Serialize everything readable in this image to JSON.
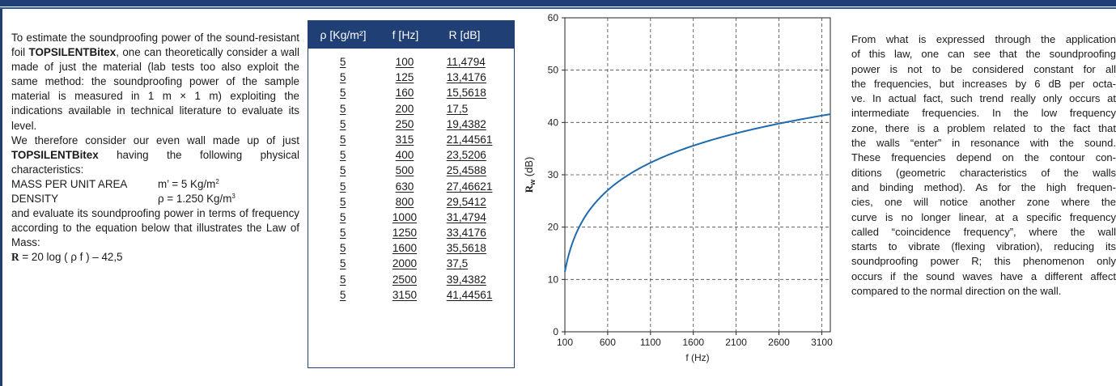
{
  "intro": {
    "p1_a": "To estimate the soundproofing power of the sound-resistant foil ",
    "p1_brand": "TOPSILENTBitex",
    "p1_b": ", one can theoretically consider a wall made of just the material (lab tests too also exploit the same method: the soundproofing power of the sample material is measured in 1 m × 1 m) exploiting the indications available in technical literature to evaluate its level.",
    "p2_a": "We therefore consider our even wall made up of just ",
    "p2_brand": "TOPSILENTBitex",
    "p2_b": " having the following physical characteristics:",
    "mass_label": "MASS PER UNIT AREA",
    "mass_value": "m’ = 5 Kg/m",
    "mass_exp": "2",
    "density_label": "DENSITY",
    "density_value": "ρ = 1.250 Kg/m",
    "density_exp": "3",
    "p3": "and evaluate its soundproofing power in terms of frequency according to the equation below that illustrates the Law of Mass:",
    "eq_symbol": "R",
    "eq_rest": " = 20 log ( ρ f ) – 42,5"
  },
  "table": {
    "headers": [
      "ρ [Kg/m²]",
      "f [Hz]",
      "R [dB]"
    ],
    "rows": [
      [
        "5",
        "100",
        "11,4794"
      ],
      [
        "5",
        "125",
        "13,4176"
      ],
      [
        "5",
        "160",
        "15,5618"
      ],
      [
        "5",
        "200",
        "17,5"
      ],
      [
        "5",
        "250",
        "19,4382"
      ],
      [
        "5",
        "315",
        "21,44561"
      ],
      [
        "5",
        "400",
        "23,5206"
      ],
      [
        "5",
        "500",
        "25,4588"
      ],
      [
        "5",
        "630",
        "27,46621"
      ],
      [
        "5",
        "800",
        "29,5412"
      ],
      [
        "5",
        "1000",
        "31,4794"
      ],
      [
        "5",
        "1250",
        "33,4176"
      ],
      [
        "5",
        "1600",
        "35,5618"
      ],
      [
        "5",
        "2000",
        "37,5"
      ],
      [
        "5",
        "2500",
        "39,4382"
      ],
      [
        "5",
        "3150",
        "41,44561"
      ]
    ]
  },
  "chart_data": {
    "type": "line",
    "xlabel": "f (Hz)",
    "ylabel_main": "R",
    "ylabel_sub": "w",
    "ylabel_unit": " (dB)",
    "xlim": [
      100,
      3200
    ],
    "ylim": [
      0,
      60
    ],
    "xticks": [
      100,
      600,
      1100,
      1600,
      2100,
      2600,
      3100
    ],
    "yticks": [
      0,
      10,
      20,
      30,
      40,
      50,
      60
    ],
    "grid": "dashed",
    "series": [
      {
        "color": "#1f6bb0",
        "x": [
          100,
          125,
          160,
          200,
          250,
          315,
          400,
          500,
          630,
          800,
          1000,
          1250,
          1600,
          2000,
          2500,
          3150,
          3200
        ],
        "y": [
          11.4794,
          13.4176,
          15.5618,
          17.5,
          19.4382,
          21.44561,
          23.5206,
          25.4588,
          27.46621,
          29.5412,
          31.4794,
          33.4176,
          35.5618,
          37.5,
          39.4382,
          41.44561,
          41.58
        ]
      }
    ]
  },
  "right_text": [
    "From what is expressed through the application",
    "of this law, one can see that the soundproofing",
    "power is not to be considered constant for all",
    "the frequencies, but increases by 6 dB per octa-",
    "ve. In actual fact, such trend really only occurs at",
    "intermediate frequencies. In the low frequency",
    "zone, there is a problem related to the fact that",
    "the walls “enter” in resonance with the sound.",
    "These frequencies depend on the contour con-",
    "ditions (geometric characteristics of the walls",
    "and binding method). As for the high frequen-",
    "cies, one will notice another zone where the",
    "curve is no longer linear, at a specific frequency",
    "called “coincidence frequency”, where the wall",
    "starts to vibrate (flexing vibration), reducing its",
    "soundproofing power R; this phenomenon only",
    "occurs if the sound waves have a different affect",
    "compared to the normal direction on the wall."
  ]
}
